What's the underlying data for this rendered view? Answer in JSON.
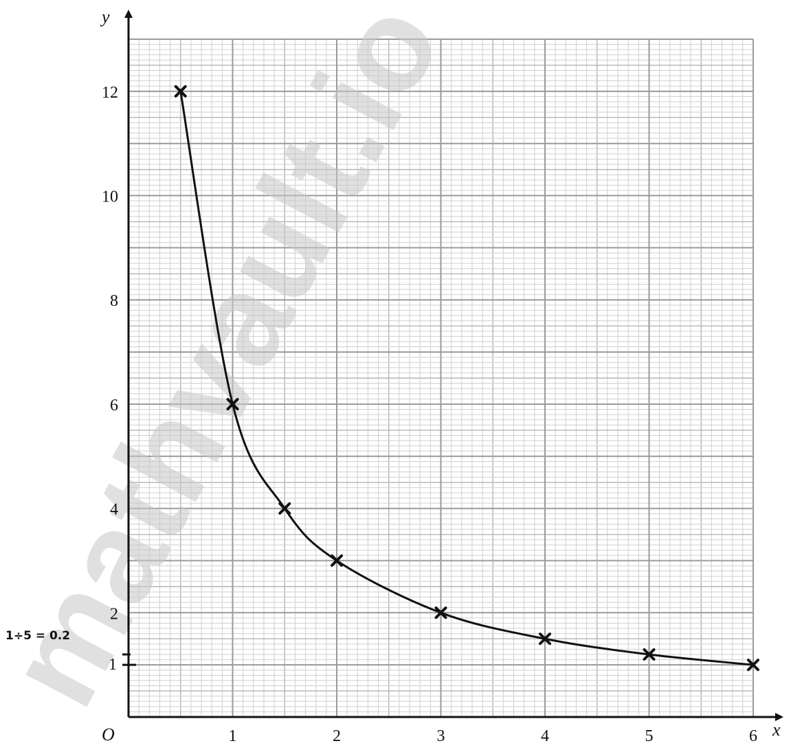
{
  "chart_data": {
    "type": "scatter",
    "title": "",
    "xlabel": "x",
    "ylabel": "y",
    "origin_label": "O",
    "xlim": [
      0,
      6
    ],
    "ylim": [
      0,
      13
    ],
    "x_ticks": [
      1,
      2,
      3,
      4,
      5,
      6
    ],
    "y_ticks": [
      2,
      4,
      6,
      8,
      10,
      12
    ],
    "grid": true,
    "series": [
      {
        "points": [
          {
            "x": 0.5,
            "y": 12
          },
          {
            "x": 1,
            "y": 6
          },
          {
            "x": 1.5,
            "y": 4
          },
          {
            "x": 2,
            "y": 3
          },
          {
            "x": 3,
            "y": 2
          },
          {
            "x": 4,
            "y": 1.5
          },
          {
            "x": 5,
            "y": 1.2
          },
          {
            "x": 6,
            "y": 1
          }
        ],
        "marker": "cross",
        "curve": "smooth",
        "color": "#111111"
      }
    ],
    "annotations": {
      "margin_note": "1÷5 = 0.2",
      "extra_tick_label": "1"
    }
  },
  "watermark": "mathvault.io Solu"
}
